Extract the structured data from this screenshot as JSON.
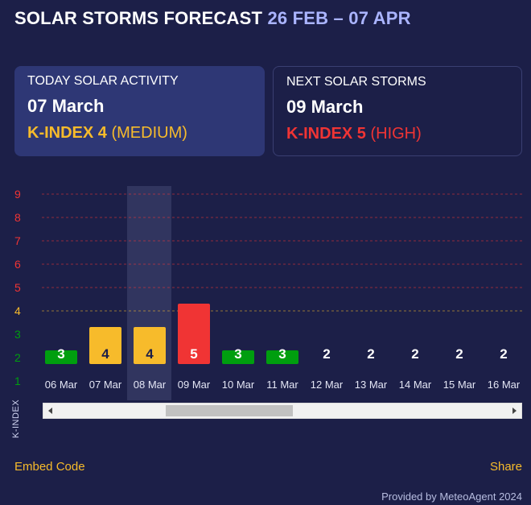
{
  "header": {
    "title": "SOLAR STORMS FORECAST",
    "range": "26 FEB – 07 APR"
  },
  "today": {
    "label": "TODAY SOLAR ACTIVITY",
    "date": "07 March",
    "kindex_label": "K-INDEX 4",
    "level": "(MEDIUM)"
  },
  "next": {
    "label": "NEXT SOLAR STORMS",
    "date": "09 March",
    "kindex_label": "K-INDEX 5",
    "level": "(HIGH)"
  },
  "footer": {
    "embed": "Embed Code",
    "share": "Share",
    "credit": "Provided by MeteoAgent 2024"
  },
  "colors": {
    "low": "#009e0f",
    "medium": "#f7bb2b",
    "high": "#f03434",
    "background": "#1c1f48",
    "highlight_column": "#3a3f6a"
  },
  "chart_data": {
    "type": "bar",
    "ylabel": "K-INDEX",
    "ylim": [
      1,
      9
    ],
    "yticks": [
      1,
      2,
      3,
      4,
      5,
      6,
      7,
      8,
      9
    ],
    "categories": [
      "06 Mar",
      "07 Mar",
      "08 Mar",
      "09 Mar",
      "10 Mar",
      "11 Mar",
      "12 Mar",
      "13 Mar",
      "14 Mar",
      "15 Mar",
      "16 Mar"
    ],
    "values": [
      3,
      4,
      4,
      5,
      3,
      3,
      2,
      2,
      2,
      2,
      2
    ],
    "highlighted_category": "07 Mar",
    "grid": "dashed horizontal"
  }
}
